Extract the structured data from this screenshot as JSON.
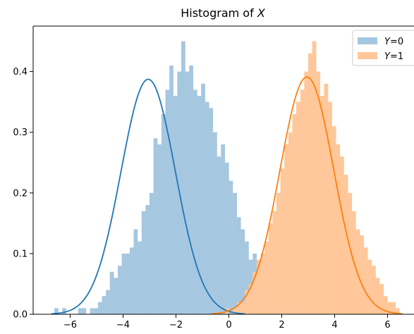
{
  "chart_data": {
    "type": "bar",
    "title_prefix": "Histogram of ",
    "title_var": "X",
    "xlabel": "",
    "ylabel": "",
    "xlim": [
      -7.4,
      7.0
    ],
    "ylim": [
      0,
      0.475
    ],
    "xticks": [
      -6,
      -4,
      -2,
      0,
      2,
      4,
      6
    ],
    "yticks": [
      0.0,
      0.1,
      0.2,
      0.3,
      0.4
    ],
    "grid": false,
    "legend": {
      "placement": "top-right",
      "entries": [
        {
          "var": "Y",
          "eq": "=0",
          "color": "#a6c7e0"
        },
        {
          "var": "Y",
          "eq": "=1",
          "color": "#ffc79a"
        }
      ]
    },
    "bin_width": 0.15,
    "series": [
      {
        "color": "#a6c7e0",
        "curve_color": "#1f77b4",
        "bin_start": -6.6,
        "counts": [
          0.01,
          0.0,
          0.01,
          0.0,
          0.0,
          0.0,
          0.01,
          0.01,
          0.0,
          0.01,
          0.01,
          0.02,
          0.03,
          0.04,
          0.07,
          0.06,
          0.08,
          0.1,
          0.1,
          0.11,
          0.14,
          0.12,
          0.17,
          0.18,
          0.2,
          0.29,
          0.28,
          0.33,
          0.37,
          0.41,
          0.36,
          0.4,
          0.45,
          0.4,
          0.41,
          0.37,
          0.36,
          0.38,
          0.35,
          0.34,
          0.3,
          0.26,
          0.28,
          0.25,
          0.22,
          0.2,
          0.16,
          0.14,
          0.12,
          0.09,
          0.1,
          0.07,
          0.06,
          0.05,
          0.04,
          0.02,
          0.02,
          0.01,
          0.01,
          0.0,
          0.01
        ],
        "kde": {
          "mu": -3.05,
          "sigma": 1.03
        }
      },
      {
        "color": "#ffc79a",
        "curve_color": "#ff7f0e",
        "bin_start": -0.3,
        "counts": [
          0.0,
          0.01,
          0.0,
          0.01,
          0.02,
          0.02,
          0.04,
          0.05,
          0.07,
          0.09,
          0.1,
          0.12,
          0.15,
          0.17,
          0.2,
          0.24,
          0.28,
          0.3,
          0.33,
          0.35,
          0.37,
          0.4,
          0.43,
          0.45,
          0.4,
          0.36,
          0.38,
          0.35,
          0.31,
          0.28,
          0.26,
          0.23,
          0.2,
          0.17,
          0.14,
          0.13,
          0.11,
          0.09,
          0.08,
          0.06,
          0.05,
          0.03,
          0.02,
          0.02,
          0.01
        ],
        "kde": {
          "mu": 2.95,
          "sigma": 1.02
        }
      }
    ]
  }
}
